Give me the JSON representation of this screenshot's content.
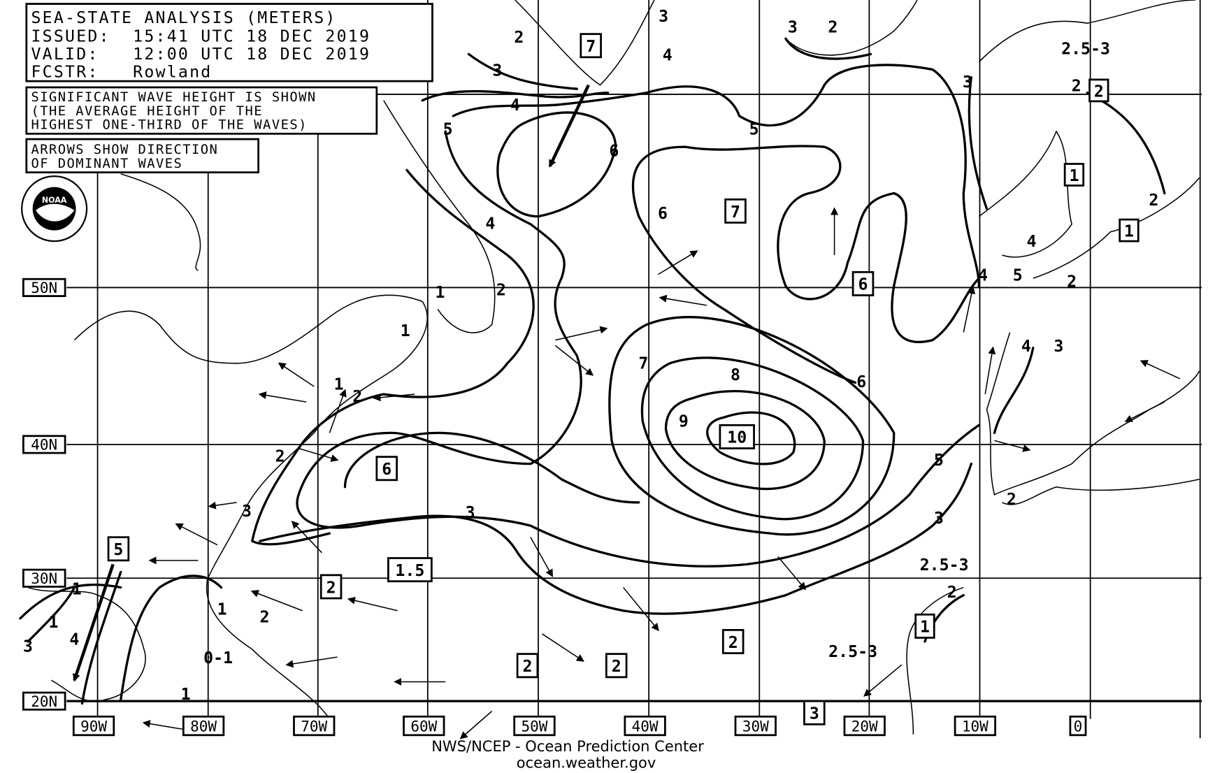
{
  "header": {
    "title": "SEA-STATE ANALYSIS (METERS)",
    "issued": "ISSUED:  15:41 UTC 18 DEC 2019",
    "valid": "VALID:   12:00 UTC 18 DEC 2019",
    "forecaster": "FCSTR:   Rowland"
  },
  "notes": {
    "line1": "SIGNIFICANT WAVE HEIGHT IS SHOWN",
    "line2": "(THE AVERAGE HEIGHT OF THE",
    "line3": "HIGHEST ONE-THIRD OF THE WAVES)",
    "arrows1": "ARROWS SHOW DIRECTION",
    "arrows2": "OF DOMINANT WAVES"
  },
  "logo": {
    "text": "NOAA",
    "icon": "noaa-logo"
  },
  "axes": {
    "latitudes": [
      "50N",
      "40N",
      "30N",
      "20N"
    ],
    "longitudes": [
      "90W",
      "80W",
      "70W",
      "60W",
      "50W",
      "40W",
      "30W",
      "20W",
      "10W",
      "0"
    ]
  },
  "boxed_labels": [
    "7",
    "2",
    "1",
    "1",
    "7",
    "6",
    "10",
    "6",
    "1.5",
    "2",
    "5",
    "2",
    "2",
    "2",
    "1",
    "3"
  ],
  "contour_labels": [
    "2",
    "3",
    "3",
    "2",
    "3",
    "4",
    "4",
    "5",
    "6",
    "5",
    "6",
    "4",
    "3",
    "2.5-3",
    "2",
    "2",
    "4",
    "5",
    "4",
    "2",
    "4",
    "3",
    "1",
    "2",
    "1",
    "1",
    "2",
    "2",
    "6",
    "7",
    "8",
    "9",
    "5",
    "3",
    "3",
    "2.5-3",
    "2",
    "2.5-3",
    "2",
    "1",
    "1",
    "4",
    "3",
    "1",
    "0-1",
    "1",
    "3",
    "2"
  ],
  "footer": {
    "agency": "NWS/NCEP - Ocean Prediction Center",
    "url": "ocean.weather.gov"
  },
  "colors": {
    "ink": "#000000",
    "background": "#ffffff"
  }
}
